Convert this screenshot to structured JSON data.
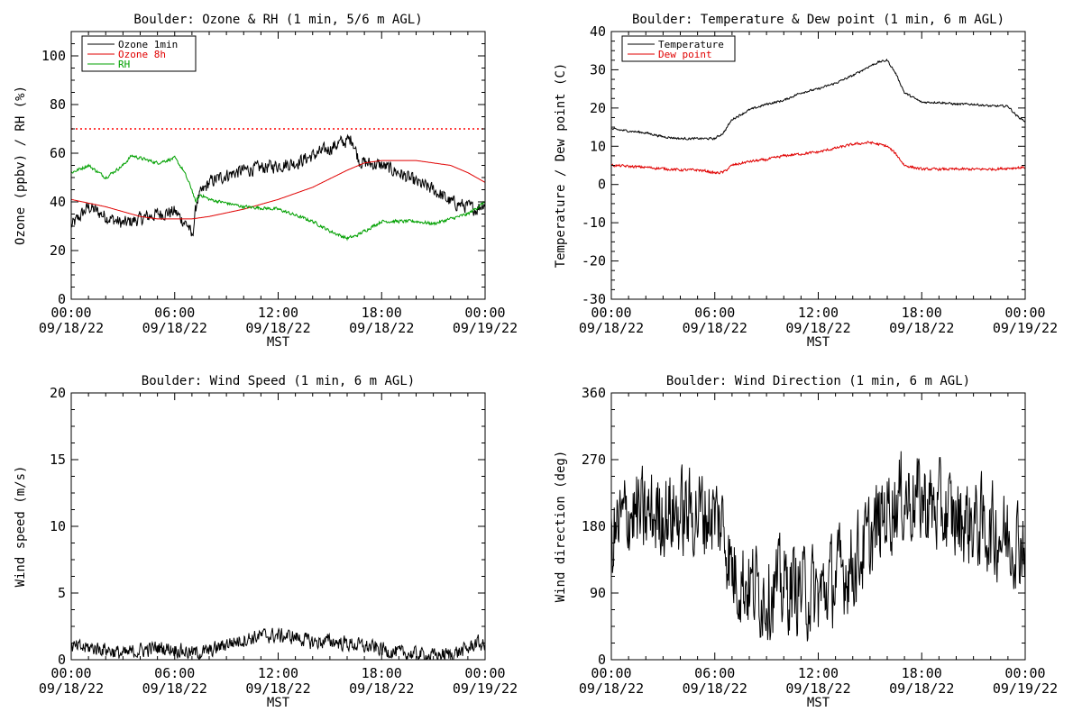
{
  "chart_data": [
    {
      "type": "line",
      "title": "Boulder: Ozone & RH (1 min, 5/6 m AGL)",
      "xlabel": "MST",
      "ylabel": "Ozone (ppbv) / RH (%)",
      "xlim": [
        "09/18/22 00:00",
        "09/19/22 00:00"
      ],
      "ylim": [
        0,
        110
      ],
      "yticks": [
        0,
        20,
        40,
        60,
        80,
        100
      ],
      "xtick_labels": [
        [
          "00:00",
          "09/18/22"
        ],
        [
          "06:00",
          "09/18/22"
        ],
        [
          "12:00",
          "09/18/22"
        ],
        [
          "18:00",
          "09/18/22"
        ],
        [
          "00:00",
          "09/19/22"
        ]
      ],
      "legend_position": "top-left",
      "reference_lines": [
        {
          "y": 70,
          "color": "#ff0000",
          "style": "dotted"
        }
      ],
      "series": [
        {
          "name": "Ozone 1min",
          "color": "#000000",
          "noise": 2.5,
          "x_hours": [
            0,
            1,
            2,
            3,
            4,
            5,
            6,
            6.8,
            7,
            7.3,
            8,
            9,
            10,
            11,
            12,
            13,
            14,
            15,
            15.5,
            16,
            16.3,
            16.5,
            16.7,
            17,
            18,
            19,
            20,
            21,
            22,
            23,
            23.5,
            24
          ],
          "values": [
            30,
            38,
            34,
            31,
            33,
            35,
            36,
            30,
            25,
            41,
            48,
            51,
            53,
            54,
            55,
            56,
            59,
            62,
            64,
            65,
            66,
            61,
            57,
            56,
            55,
            52,
            48,
            45,
            40,
            38,
            37,
            40
          ]
        },
        {
          "name": "Ozone 8h",
          "color": "#e00000",
          "noise": 0,
          "x_hours": [
            0,
            2,
            4,
            5,
            6,
            7,
            8,
            10,
            12,
            14,
            16,
            17,
            18,
            19,
            20,
            21,
            22,
            23,
            24
          ],
          "values": [
            41,
            38,
            34,
            33,
            33,
            33,
            34,
            37,
            41,
            46,
            53,
            56,
            57,
            57,
            57,
            56,
            55,
            52,
            48
          ]
        },
        {
          "name": "RH",
          "color": "#00a000",
          "noise": 0.6,
          "x_hours": [
            0,
            1,
            2,
            3,
            3.5,
            4,
            5,
            6,
            6.5,
            7,
            7.2,
            7.5,
            8,
            10,
            12,
            14,
            15,
            16,
            16.5,
            17,
            18,
            19,
            20,
            21,
            22,
            23,
            24
          ],
          "values": [
            52,
            55,
            50,
            55,
            59,
            58,
            56,
            58,
            53,
            45,
            40,
            43,
            41,
            38,
            37,
            32,
            28,
            25,
            26,
            28,
            32,
            32,
            32,
            31,
            33,
            35,
            40
          ]
        }
      ]
    },
    {
      "type": "line",
      "title": "Boulder: Temperature & Dew point (1 min, 6 m AGL)",
      "xlabel": "MST",
      "ylabel": "Temperature / Dew point (C)",
      "xlim": [
        "09/18/22 00:00",
        "09/19/22 00:00"
      ],
      "ylim": [
        -30,
        40
      ],
      "yticks": [
        -30,
        -20,
        -10,
        0,
        10,
        20,
        30,
        40
      ],
      "xtick_labels": [
        [
          "00:00",
          "09/18/22"
        ],
        [
          "06:00",
          "09/18/22"
        ],
        [
          "12:00",
          "09/18/22"
        ],
        [
          "18:00",
          "09/18/22"
        ],
        [
          "00:00",
          "09/19/22"
        ]
      ],
      "legend_position": "top-left",
      "series": [
        {
          "name": "Temperature",
          "color": "#000000",
          "noise": 0.25,
          "x_hours": [
            0,
            1,
            2,
            3,
            4,
            5,
            6,
            6.5,
            7,
            8,
            9,
            10,
            11,
            12,
            13,
            14,
            15,
            15.5,
            16,
            16.5,
            17,
            18,
            19,
            20,
            21,
            22,
            23,
            23.5,
            24
          ],
          "values": [
            14.5,
            14,
            13.5,
            12.5,
            12,
            12,
            12,
            13.5,
            17,
            19.5,
            21,
            22,
            24,
            25,
            26.5,
            28.5,
            31,
            32,
            32.5,
            29,
            24,
            21.5,
            21.5,
            21,
            21,
            20.5,
            20.5,
            18,
            16.5
          ]
        },
        {
          "name": "Dew point",
          "color": "#e00000",
          "noise": 0.3,
          "x_hours": [
            0,
            2,
            4,
            5,
            5.5,
            6,
            6.5,
            7,
            8,
            9,
            10,
            12,
            13,
            14,
            15,
            16,
            16.5,
            17,
            18,
            20,
            22,
            24
          ],
          "values": [
            5,
            4.5,
            3.8,
            3.8,
            3.5,
            3,
            3.2,
            5,
            6,
            6.5,
            7.5,
            8.5,
            9.5,
            10.5,
            11,
            10,
            8,
            5,
            4,
            4,
            4,
            4.5
          ]
        }
      ]
    },
    {
      "type": "line",
      "title": "Boulder: Wind Speed (1 min, 6 m AGL)",
      "xlabel": "MST",
      "ylabel": "Wind speed (m/s)",
      "xlim": [
        "09/18/22 00:00",
        "09/19/22 00:00"
      ],
      "ylim": [
        0,
        20
      ],
      "yticks": [
        0,
        5,
        10,
        15,
        20
      ],
      "xtick_labels": [
        [
          "00:00",
          "09/18/22"
        ],
        [
          "06:00",
          "09/18/22"
        ],
        [
          "12:00",
          "09/18/22"
        ],
        [
          "18:00",
          "09/18/22"
        ],
        [
          "00:00",
          "09/19/22"
        ]
      ],
      "series": [
        {
          "name": "",
          "color": "#000000",
          "noise": 0.5,
          "x_hours": [
            0,
            1,
            2,
            3,
            4,
            5,
            6,
            7,
            8,
            9,
            10,
            11,
            12,
            13,
            14,
            15,
            16,
            17,
            18,
            19,
            20,
            21,
            22,
            23,
            23.5,
            24
          ],
          "values": [
            0.9,
            0.9,
            0.8,
            0.4,
            0.7,
            0.9,
            0.8,
            0.5,
            0.6,
            1.2,
            1.5,
            1.8,
            1.8,
            1.7,
            1.3,
            1.4,
            1.2,
            1.0,
            0.8,
            0.5,
            0.4,
            0.3,
            0.4,
            0.8,
            1.3,
            1.0
          ]
        }
      ]
    },
    {
      "type": "line",
      "title": "Boulder: Wind Direction (1 min, 6 m AGL)",
      "xlabel": "MST",
      "ylabel": "Wind direction (deg)",
      "xlim": [
        "09/18/22 00:00",
        "09/19/22 00:00"
      ],
      "ylim": [
        0,
        360
      ],
      "yticks": [
        0,
        90,
        180,
        270,
        360
      ],
      "xtick_labels": [
        [
          "00:00",
          "09/18/22"
        ],
        [
          "06:00",
          "09/18/22"
        ],
        [
          "12:00",
          "09/18/22"
        ],
        [
          "18:00",
          "09/18/22"
        ],
        [
          "00:00",
          "09/19/22"
        ]
      ],
      "series": [
        {
          "name": "",
          "color": "#000000",
          "noise": 55,
          "x_hours": [
            0,
            1,
            2,
            3,
            4,
            5,
            6,
            6.5,
            7,
            8,
            9,
            10,
            11,
            12,
            13,
            14,
            15,
            16,
            17,
            18,
            19,
            20,
            21,
            22,
            23,
            24
          ],
          "values": [
            160,
            200,
            190,
            200,
            195,
            200,
            195,
            180,
            120,
            100,
            90,
            100,
            95,
            85,
            110,
            130,
            160,
            205,
            220,
            215,
            200,
            190,
            185,
            175,
            165,
            160
          ]
        }
      ]
    }
  ]
}
